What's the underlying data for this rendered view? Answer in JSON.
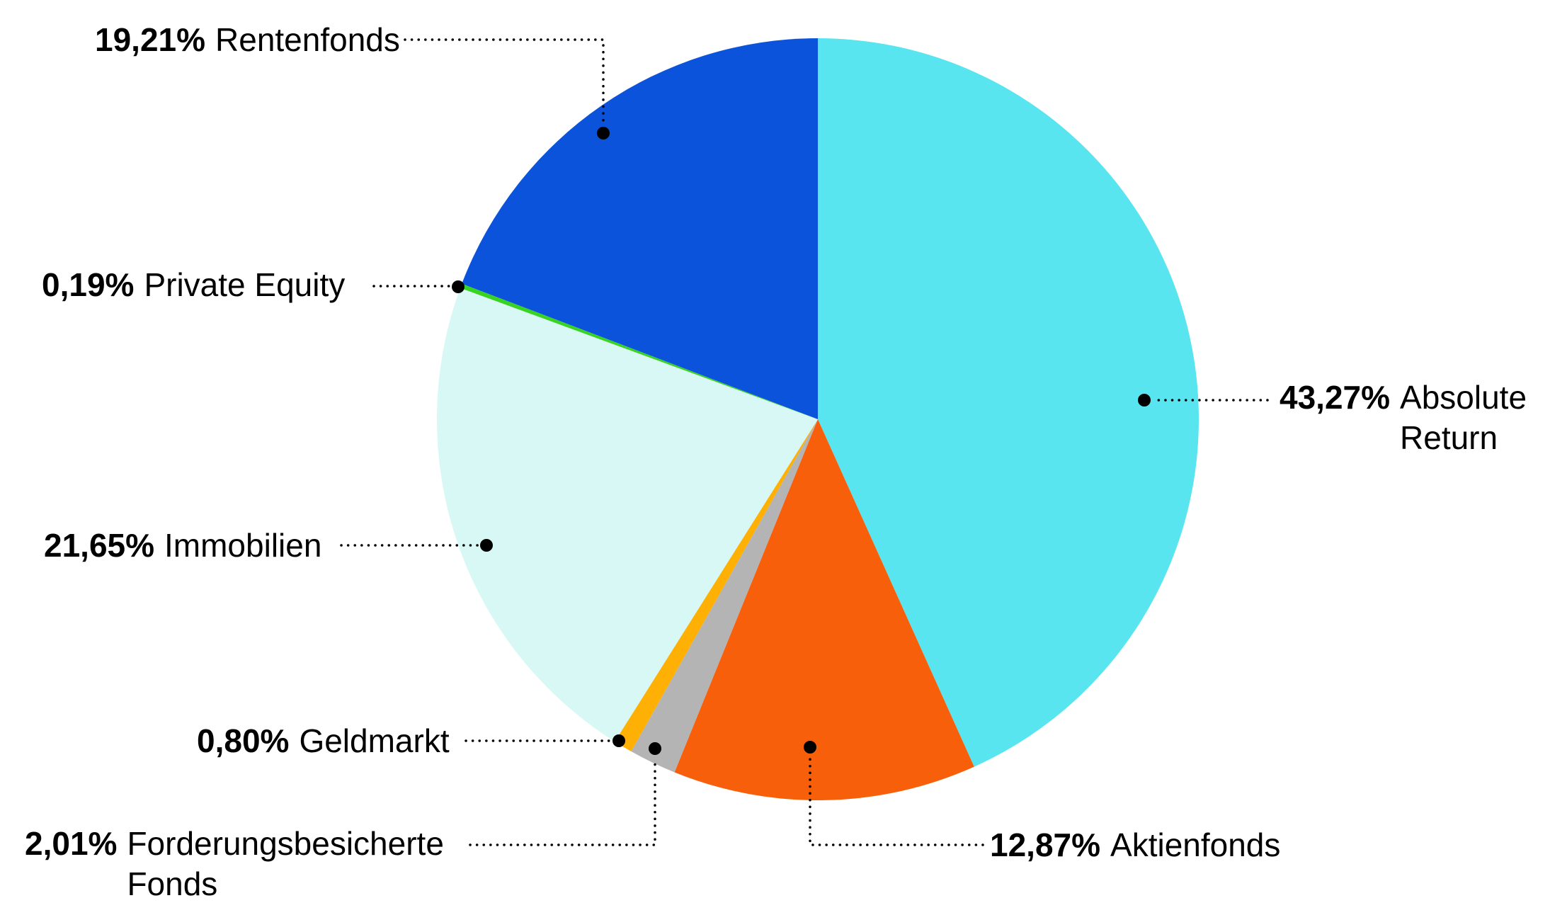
{
  "chart_data": {
    "type": "pie",
    "title": "",
    "unit": "percent",
    "legend": "none",
    "label_style": {
      "percent_bold": true,
      "leader_lines": "dotted",
      "text_color": "#000000"
    },
    "start_angle": "12-oclock-clockwise",
    "slices": [
      {
        "key": "absolute-return",
        "label": "Absolute Return",
        "value": 43.27,
        "value_label": "43,27%",
        "color": "#58E5F0"
      },
      {
        "key": "aktienfonds",
        "label": "Aktienfonds",
        "value": 12.87,
        "value_label": "12,87%",
        "color": "#F85F0A"
      },
      {
        "key": "forderungsbesicherte-fonds",
        "label": "Forderungsbesicherte Fonds",
        "value": 2.01,
        "value_label": "2,01%",
        "color": "#B4B4B4"
      },
      {
        "key": "geldmarkt",
        "label": "Geldmarkt",
        "value": 0.8,
        "value_label": "0,80%",
        "color": "#FFB005"
      },
      {
        "key": "immobilien",
        "label": "Immobilien",
        "value": 21.65,
        "value_label": "21,65%",
        "color": "#D8F8F5"
      },
      {
        "key": "private-equity",
        "label": "Private Equity",
        "value": 0.19,
        "value_label": "0,19%",
        "color": "#39D321"
      },
      {
        "key": "rentenfonds",
        "label": "Rentenfonds",
        "value": 19.21,
        "value_label": "19,21%",
        "color": "#0C53DB"
      }
    ]
  }
}
